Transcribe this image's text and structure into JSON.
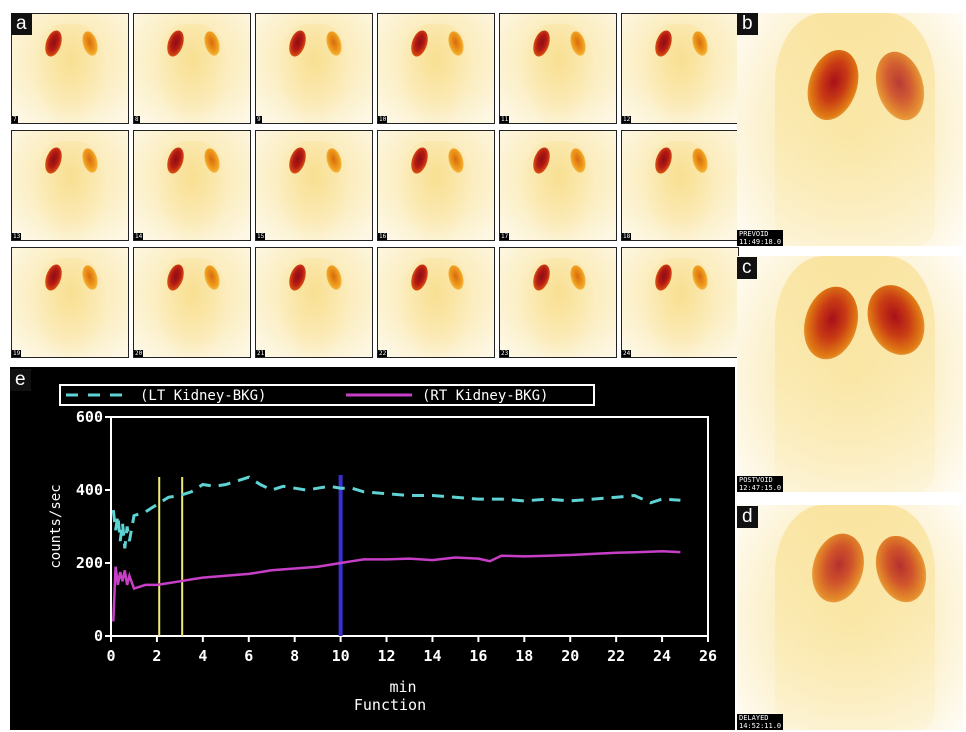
{
  "panels": {
    "a": "a",
    "b": "b",
    "c": "c",
    "d": "d",
    "e": "e"
  },
  "frames": [
    {
      "num": "7"
    },
    {
      "num": "8"
    },
    {
      "num": "9"
    },
    {
      "num": "10"
    },
    {
      "num": "11"
    },
    {
      "num": "12"
    },
    {
      "num": "13"
    },
    {
      "num": "14"
    },
    {
      "num": "15"
    },
    {
      "num": "16"
    },
    {
      "num": "17"
    },
    {
      "num": "18"
    },
    {
      "num": "19"
    },
    {
      "num": "20"
    },
    {
      "num": "21"
    },
    {
      "num": "22"
    },
    {
      "num": "23"
    },
    {
      "num": "24"
    }
  ],
  "static_images": {
    "b": {
      "line1": "PREVOID",
      "line2": "11:49:18.0"
    },
    "c": {
      "line1": "POSTVOID",
      "line2": "12:47:15.0"
    },
    "d": {
      "line1": "DELAYED",
      "line2": "14:52:11.0"
    }
  },
  "colors": {
    "lt_series": "#5fd3d3",
    "rt_series": "#c63fc6",
    "marker_yellow": "#f0ea7a",
    "marker_blue": "#3a2fd0",
    "axis": "#ffffff"
  },
  "chart_data": {
    "type": "line",
    "title": "Function",
    "xlabel": "min",
    "ylabel": "counts/sec",
    "xlim": [
      0,
      26
    ],
    "ylim": [
      0,
      600
    ],
    "x_ticks": [
      "0",
      "2",
      "4",
      "6",
      "8",
      "10",
      "12",
      "14",
      "16",
      "18",
      "20",
      "22",
      "24",
      "26"
    ],
    "y_ticks": [
      "0",
      "200",
      "400",
      "600"
    ],
    "grid": false,
    "legend_position": "top",
    "series": [
      {
        "name": "(LT Kidney-BKG)",
        "style": "dashed",
        "x": [
          0.1,
          0.2,
          0.3,
          0.4,
          0.5,
          0.6,
          0.7,
          0.8,
          1.0,
          1.5,
          2.0,
          2.5,
          3.0,
          3.5,
          4.0,
          4.5,
          5.0,
          5.5,
          6.0,
          6.5,
          7.0,
          7.5,
          8.0,
          8.5,
          9.0,
          9.5,
          10.0,
          10.5,
          11.0,
          12.0,
          13.0,
          14.0,
          15.0,
          16.0,
          17.0,
          18.0,
          19.0,
          20.0,
          21.0,
          22.0,
          22.8,
          23.5,
          24.0,
          24.8
        ],
        "y": [
          345,
          290,
          330,
          260,
          310,
          240,
          300,
          260,
          330,
          340,
          360,
          380,
          385,
          395,
          415,
          410,
          415,
          425,
          435,
          415,
          400,
          410,
          405,
          400,
          405,
          410,
          405,
          405,
          395,
          390,
          385,
          385,
          380,
          375,
          375,
          370,
          375,
          370,
          375,
          380,
          385,
          365,
          375,
          372
        ]
      },
      {
        "name": "(RT Kidney-BKG)",
        "style": "solid",
        "x": [
          0.1,
          0.2,
          0.3,
          0.4,
          0.5,
          0.6,
          0.7,
          0.8,
          1.0,
          1.5,
          2.0,
          2.5,
          3.0,
          3.5,
          4.0,
          5.0,
          6.0,
          7.0,
          8.0,
          9.0,
          10.0,
          10.5,
          11.0,
          12.0,
          13.0,
          14.0,
          15.0,
          16.0,
          16.5,
          17.0,
          18.0,
          19.0,
          20.0,
          21.0,
          22.0,
          23.0,
          24.0,
          24.8
        ],
        "y": [
          40,
          190,
          140,
          175,
          150,
          180,
          140,
          165,
          130,
          140,
          140,
          145,
          150,
          155,
          160,
          165,
          170,
          180,
          185,
          190,
          200,
          205,
          210,
          210,
          212,
          208,
          215,
          212,
          205,
          220,
          218,
          220,
          222,
          225,
          228,
          230,
          232,
          230
        ]
      }
    ],
    "vertical_markers": [
      {
        "x": 2.1,
        "color": "yellow"
      },
      {
        "x": 3.1,
        "color": "yellow"
      },
      {
        "x": 10.0,
        "color": "blue"
      }
    ]
  }
}
